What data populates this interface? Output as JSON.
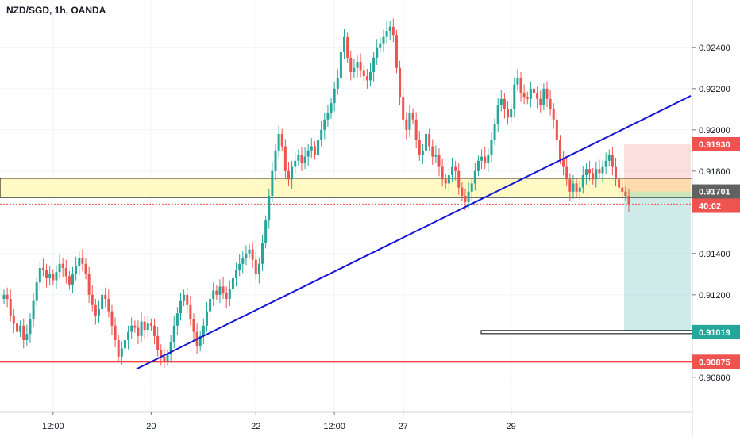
{
  "chart_data": {
    "type": "candlestick",
    "title": "NZD/SGD, 1h, OANDA",
    "ylim": [
      0.9063,
      0.9263
    ],
    "y_ticks": [
      "0.92400",
      "0.92200",
      "0.92000",
      "0.91800",
      "0.91400",
      "0.91200",
      "0.90800"
    ],
    "x_tick_labels": [
      "12:00",
      "20",
      "22",
      "12:00",
      "27",
      "29"
    ],
    "colors": {
      "up": "#26a69a",
      "down": "#ef5350",
      "trendline": "#1515d6",
      "support": "#ff0000",
      "zone_fill": "#fff9c4"
    },
    "price_badges": [
      {
        "label": "0.91930",
        "color": "#ef5350"
      },
      {
        "label": "0.91701",
        "color": "#616161"
      },
      {
        "label": "40:02",
        "color": "#ef5350"
      },
      {
        "label": "0.91019",
        "color": "#26a69a"
      },
      {
        "label": "0.90875",
        "color": "#ef5350"
      }
    ],
    "levels": {
      "support": 0.90875,
      "zone_top": 0.91765,
      "zone_bottom": 0.91672,
      "current": 0.9164,
      "take_profit": 0.91019,
      "stop_loss": 0.9193,
      "entry": 0.91701
    },
    "trendline": {
      "from": {
        "i": 0,
        "price": 0.9084
      },
      "to": {
        "i": 0,
        "price": 0.92165
      }
    },
    "closes": [
      0.912,
      0.9118,
      0.911,
      0.9106,
      0.9102,
      0.9105,
      0.9098,
      0.9101,
      0.9108,
      0.9117,
      0.9126,
      0.9133,
      0.9132,
      0.9128,
      0.913,
      0.9127,
      0.9131,
      0.9135,
      0.9133,
      0.9129,
      0.9125,
      0.913,
      0.9134,
      0.9138,
      0.9135,
      0.913,
      0.912,
      0.9115,
      0.911,
      0.9113,
      0.912,
      0.9118,
      0.9112,
      0.9105,
      0.9098,
      0.909,
      0.9094,
      0.9098,
      0.9102,
      0.9105,
      0.9104,
      0.91,
      0.9107,
      0.9103,
      0.9106,
      0.9105,
      0.91,
      0.9093,
      0.909,
      0.9088,
      0.9091,
      0.9097,
      0.9105,
      0.9111,
      0.9117,
      0.912,
      0.9115,
      0.9108,
      0.9102,
      0.9095,
      0.91,
      0.9105,
      0.9112,
      0.9118,
      0.9122,
      0.912,
      0.9124,
      0.9121,
      0.9118,
      0.9123,
      0.9128,
      0.9132,
      0.9135,
      0.9138,
      0.914,
      0.9142,
      0.9137,
      0.913,
      0.9135,
      0.9145,
      0.9156,
      0.9168,
      0.918,
      0.919,
      0.9198,
      0.9192,
      0.918,
      0.9176,
      0.9182,
      0.9185,
      0.9188,
      0.9184,
      0.9187,
      0.919,
      0.9192,
      0.9188,
      0.9195,
      0.92,
      0.9205,
      0.9208,
      0.9213,
      0.922,
      0.9225,
      0.9238,
      0.9245,
      0.9235,
      0.9228,
      0.923,
      0.9233,
      0.9229,
      0.9226,
      0.9224,
      0.9228,
      0.9235,
      0.924,
      0.9242,
      0.9245,
      0.9248,
      0.925,
      0.9246,
      0.923,
      0.9216,
      0.9205,
      0.92,
      0.9208,
      0.9205,
      0.9195,
      0.9188,
      0.919,
      0.9198,
      0.9192,
      0.9187,
      0.9188,
      0.9182,
      0.9176,
      0.9174,
      0.9178,
      0.9182,
      0.918,
      0.9172,
      0.9168,
      0.9165,
      0.917,
      0.9174,
      0.918,
      0.9185,
      0.9187,
      0.9184,
      0.9188,
      0.9195,
      0.9203,
      0.9212,
      0.9215,
      0.921,
      0.9206,
      0.921,
      0.9222,
      0.9225,
      0.9218,
      0.9216,
      0.9215,
      0.922,
      0.9218,
      0.9215,
      0.9212,
      0.922,
      0.9215,
      0.921,
      0.9205,
      0.9195,
      0.9186,
      0.9182,
      0.9176,
      0.917,
      0.9174,
      0.917,
      0.9172,
      0.9178,
      0.9181,
      0.9179,
      0.9176,
      0.9181,
      0.9179,
      0.9182,
      0.9185,
      0.9188,
      0.9182,
      0.9176,
      0.9172,
      0.917,
      0.9168,
      0.9164
    ]
  }
}
